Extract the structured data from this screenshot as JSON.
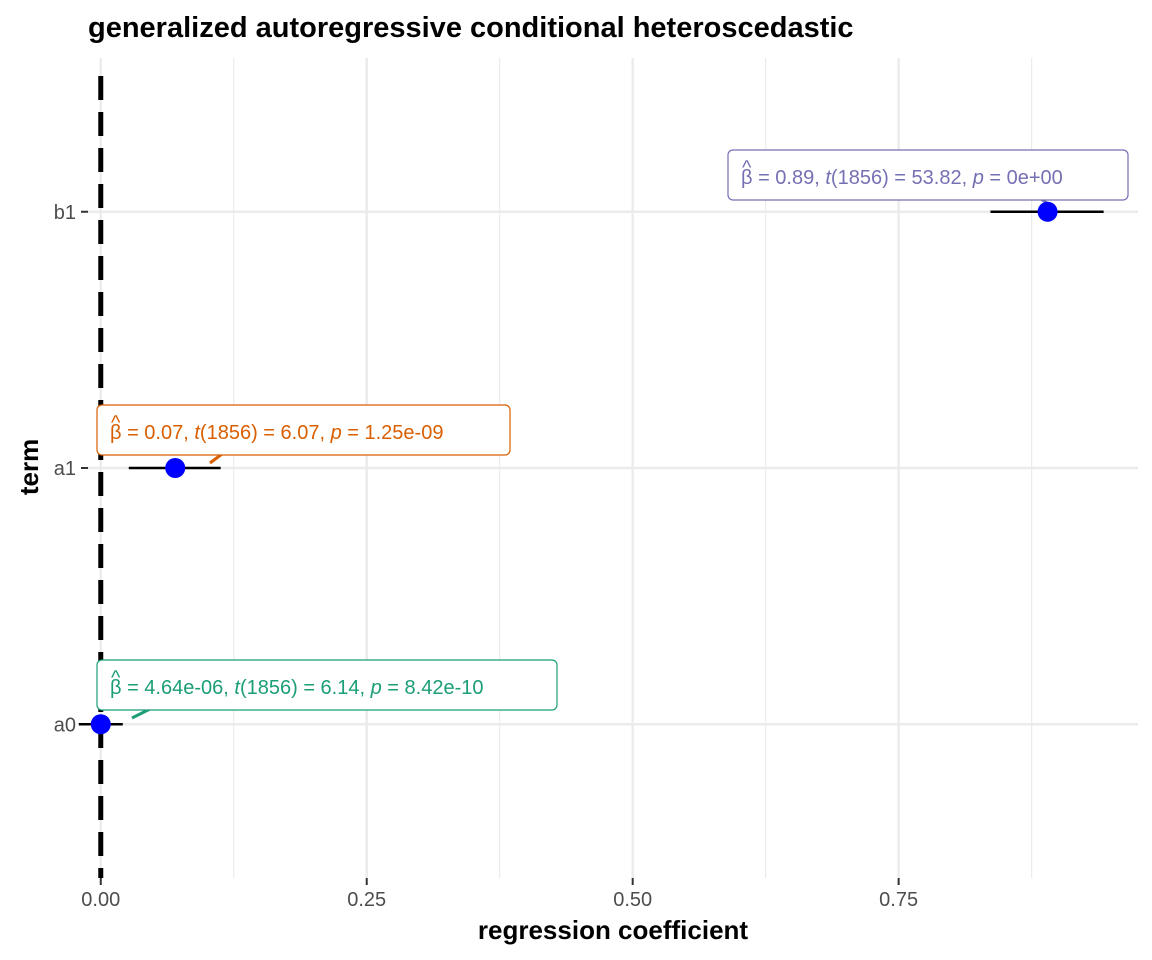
{
  "chart_data": {
    "type": "scatter",
    "title": "generalized autoregressive conditional heteroscedastic",
    "xlabel": "regression coefficient",
    "ylabel": "term",
    "xlim": [
      -0.012,
      0.975
    ],
    "x_major_ticks": [
      0.0,
      0.25,
      0.5,
      0.75
    ],
    "x_tick_labels": [
      "0.00",
      "0.25",
      "0.50",
      "0.75"
    ],
    "x_minor_ticks": [
      0.125,
      0.375,
      0.625,
      0.875
    ],
    "categories": [
      "a0",
      "a1",
      "b1"
    ],
    "reference_line": {
      "x": 0,
      "style": "dashed",
      "color": "#000000"
    },
    "grid": true,
    "point_color": "#0000ff",
    "points": [
      {
        "term": "a0",
        "estimate": 4.64e-06,
        "conf_low": 0.0,
        "conf_high": 9.4e-06,
        "label_color": "#1b9e77",
        "label_beta": "4.64e-06",
        "label_df": "1856",
        "label_t": "6.14",
        "label_p": "8.42e-10"
      },
      {
        "term": "a1",
        "estimate": 0.07,
        "conf_low": 0.047,
        "conf_high": 0.092,
        "label_color": "#d95f02",
        "label_beta": "0.07",
        "label_df": "1856",
        "label_t": "6.07",
        "label_p": "1.25e-09"
      },
      {
        "term": "b1",
        "estimate": 0.89,
        "conf_low": 0.857,
        "conf_high": 0.922,
        "label_color": "#7570b3",
        "label_beta": "0.89",
        "label_df": "1856",
        "label_t": "53.82",
        "label_p": "0e+00"
      }
    ]
  }
}
